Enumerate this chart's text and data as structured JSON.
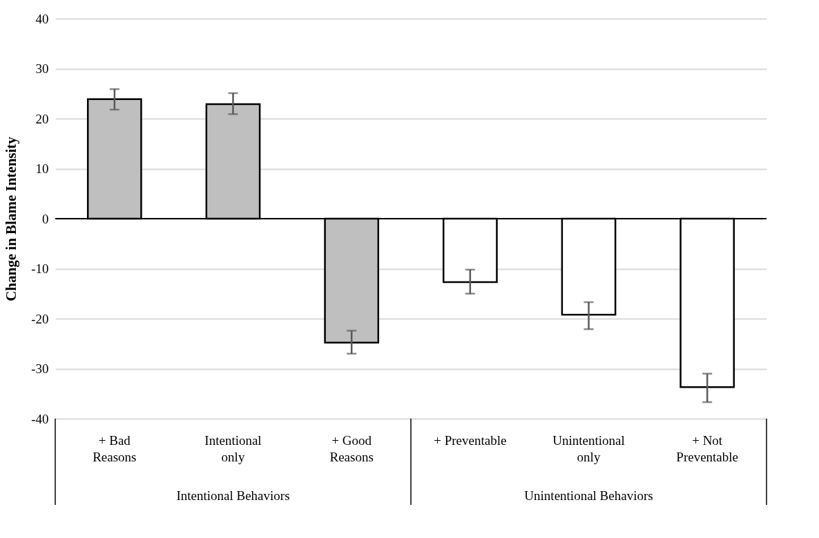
{
  "chart_data": {
    "type": "bar",
    "ylabel": "Change in Blame Intensity",
    "categories": [
      "+ Bad Reasons",
      "Intentional only",
      "+ Good Reasons",
      "+ Preventable",
      "Unintentional only",
      "+ Not Preventable"
    ],
    "values": [
      23.9,
      22.9,
      -24.8,
      -12.7,
      -19.2,
      -33.7
    ],
    "colors": [
      "#bfbfbf",
      "#bfbfbf",
      "#bfbfbf",
      "#ffffff",
      "#ffffff",
      "#ffffff"
    ],
    "errors": [
      [
        21.8,
        25.9
      ],
      [
        20.9,
        25.1
      ],
      [
        -27.0,
        -22.4
      ],
      [
        -15.0,
        -10.2
      ],
      [
        -22.1,
        -16.7
      ],
      [
        -36.7,
        -31.0
      ]
    ],
    "ylim": [
      -40,
      40
    ],
    "yticks": [
      -40,
      -30,
      -20,
      -10,
      0,
      10,
      20,
      30,
      40
    ],
    "grid": "y",
    "annotations": [
      "Intentional Behaviors",
      "Unintentional Behaviors"
    ]
  }
}
